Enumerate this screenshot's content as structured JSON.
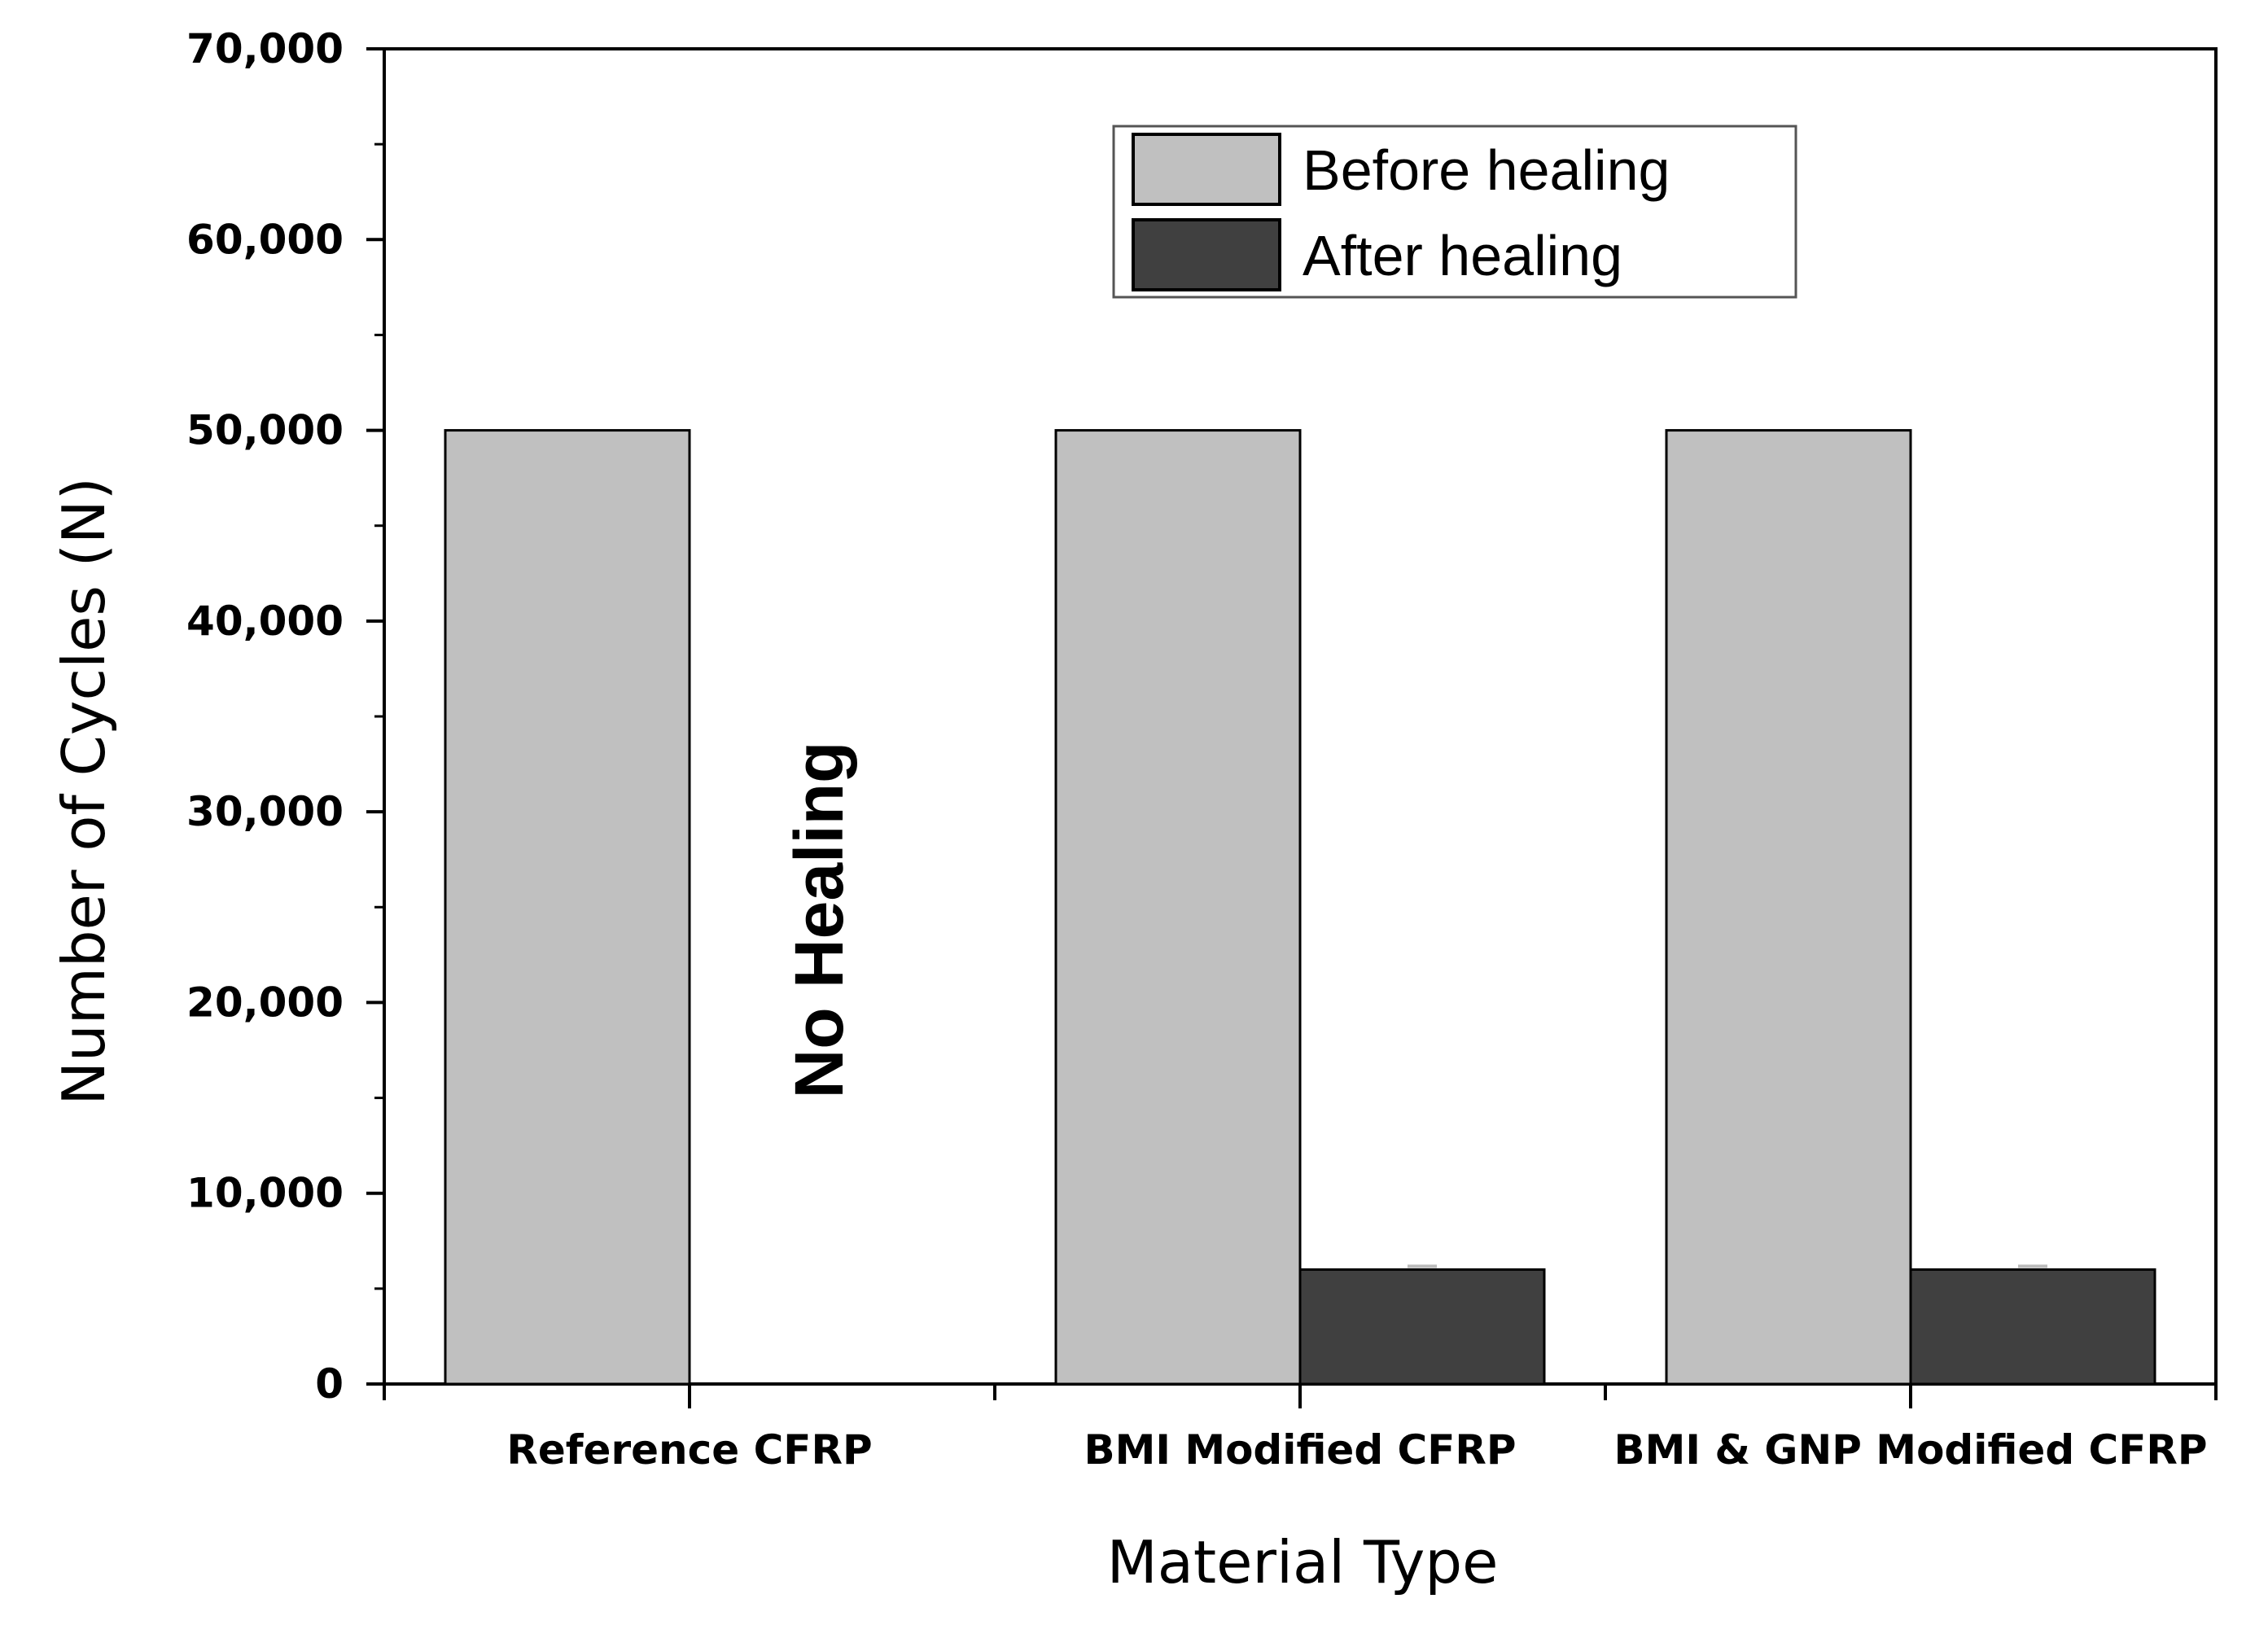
{
  "chart_data": {
    "type": "bar",
    "categories": [
      "Reference CFRP",
      "BMI Modified CFRP",
      "BMI & GNP Modified CFRP"
    ],
    "series": [
      {
        "name": "Before healing",
        "values": [
          50000,
          50000,
          50000
        ],
        "color": "#c0c0c0"
      },
      {
        "name": "After healing",
        "values": [
          null,
          6000,
          6000
        ],
        "color": "#404040"
      }
    ],
    "xlabel": "Material Type",
    "ylabel": "Number of Cycles (N)",
    "ylim": [
      0,
      70000
    ],
    "yticks": [
      "0",
      "10,000",
      "20,000",
      "30,000",
      "40,000",
      "50,000",
      "60,000",
      "70,000"
    ],
    "annotation": "No Healing",
    "legend_position": "top-right",
    "grid": false
  }
}
